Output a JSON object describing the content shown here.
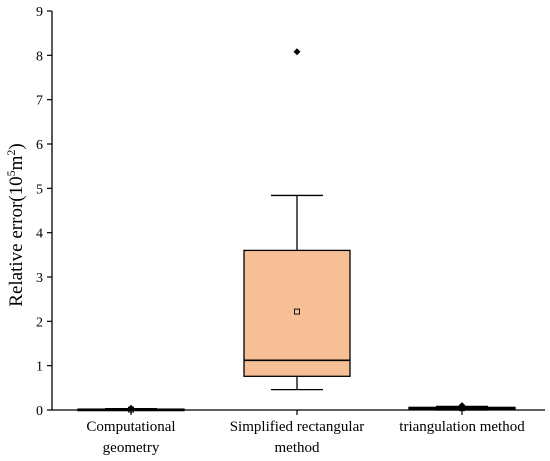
{
  "chart_data": {
    "type": "box",
    "title": "",
    "xlabel": "",
    "ylabel": "Relative error(10",
    "ylabel_sup1": "5",
    "ylabel_mid": "m",
    "ylabel_sup2": "2",
    "ylabel_end": ")",
    "ylim": [
      0,
      9
    ],
    "yticks": [
      "0",
      "1",
      "2",
      "3",
      "4",
      "5",
      "6",
      "7",
      "8",
      "9"
    ],
    "categories": [
      [
        "Computational",
        "geometry"
      ],
      [
        "Simplified rectangular",
        "method"
      ],
      [
        "triangulation method"
      ]
    ],
    "boxes": [
      {
        "whisker_low": 0.0,
        "q1": 0.0,
        "median": 0.01,
        "q3": 0.02,
        "whisker_high": 0.03,
        "mean": 0.01,
        "outliers": [
          0.04
        ]
      },
      {
        "whisker_low": 0.46,
        "q1": 0.76,
        "median": 1.12,
        "q3": 3.6,
        "whisker_high": 4.84,
        "mean": 2.22,
        "outliers": [
          8.08
        ]
      },
      {
        "whisker_low": 0.0,
        "q1": 0.02,
        "median": 0.04,
        "q3": 0.06,
        "whisker_high": 0.08,
        "mean": 0.04,
        "outliers": [
          0.1
        ]
      }
    ],
    "colors": {
      "box_fill_highlight": "#f6bf95",
      "box_fill_default": "#ffffff",
      "line": "#000000"
    },
    "grid": false,
    "legend": "none"
  }
}
